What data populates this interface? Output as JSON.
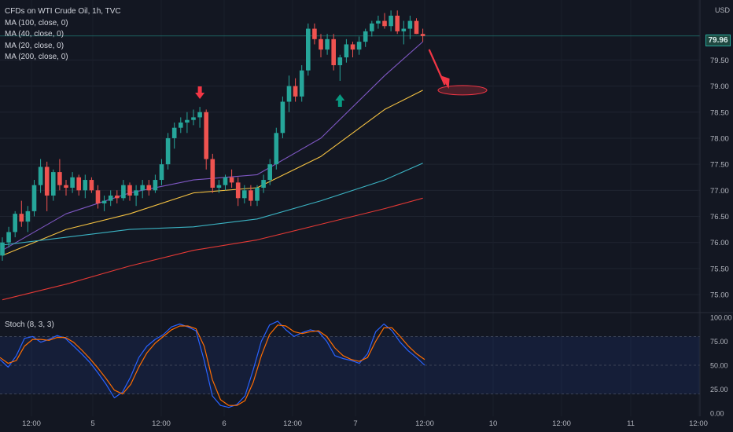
{
  "legend": {
    "title": "CFDs on WTI Crude Oil, 1h, TVC",
    "ma100": "MA (100, close, 0)",
    "ma40": "MA (40, close, 0)",
    "ma20": "MA (20, close, 0)",
    "ma200": "MA (200, close, 0)"
  },
  "currency": "USD",
  "last_price": "79.96",
  "stoch_label": "Stoch (8, 3, 3)",
  "colors": {
    "background": "#131722",
    "up": "#26a69a",
    "down": "#ef5350",
    "ma20": "#7e57c2",
    "ma40": "#f5c242",
    "ma100": "#3bb3c3",
    "ma200": "#e53935",
    "stoch_k": "#2962ff",
    "stoch_d": "#ff6d00",
    "annotation": "#f23645",
    "arrow_up": "#089981"
  },
  "chart_data": [
    {
      "type": "candlestick",
      "title": "CFDs on WTI Crude Oil, 1h, TVC",
      "y_ticks": [
        "79.50",
        "79.00",
        "78.50",
        "78.00",
        "77.50",
        "77.00",
        "76.50",
        "76.00",
        "75.50",
        "75.00"
      ],
      "x_ticks": [
        "12:00",
        "5",
        "12:00",
        "6",
        "12:00",
        "7",
        "12:00",
        "10",
        "12:00",
        "11",
        "12:00"
      ],
      "ylim": [
        74.7,
        80.5
      ],
      "candles": [
        [
          75.75,
          76.1,
          75.65,
          76.0
        ],
        [
          76.0,
          76.3,
          75.9,
          76.2
        ],
        [
          76.2,
          76.6,
          76.1,
          76.55
        ],
        [
          76.55,
          76.8,
          76.3,
          76.4
        ],
        [
          76.4,
          76.7,
          76.2,
          76.6
        ],
        [
          76.6,
          77.2,
          76.5,
          77.1
        ],
        [
          77.1,
          77.6,
          76.95,
          77.45
        ],
        [
          77.45,
          77.55,
          76.6,
          76.9
        ],
        [
          76.9,
          77.4,
          76.8,
          77.35
        ],
        [
          77.35,
          77.6,
          77.0,
          77.1
        ],
        [
          77.1,
          77.2,
          76.9,
          77.05
        ],
        [
          77.05,
          77.35,
          76.95,
          77.25
        ],
        [
          77.25,
          77.3,
          76.9,
          77.0
        ],
        [
          77.0,
          77.3,
          76.85,
          77.2
        ],
        [
          77.2,
          77.25,
          76.95,
          77.0
        ],
        [
          77.0,
          77.1,
          76.65,
          76.75
        ],
        [
          76.75,
          76.9,
          76.6,
          76.8
        ],
        [
          76.8,
          77.0,
          76.7,
          76.9
        ],
        [
          76.9,
          77.0,
          76.75,
          76.85
        ],
        [
          76.85,
          77.2,
          76.8,
          77.1
        ],
        [
          77.1,
          77.15,
          76.8,
          76.9
        ],
        [
          76.9,
          77.1,
          76.7,
          77.0
        ],
        [
          77.0,
          77.2,
          76.85,
          77.1
        ],
        [
          77.1,
          77.2,
          76.9,
          77.0
        ],
        [
          77.0,
          77.3,
          76.95,
          77.2
        ],
        [
          77.2,
          77.6,
          77.1,
          77.5
        ],
        [
          77.5,
          78.1,
          77.4,
          78.0
        ],
        [
          78.0,
          78.3,
          77.8,
          78.2
        ],
        [
          78.2,
          78.4,
          78.1,
          78.3
        ],
        [
          78.3,
          78.5,
          78.1,
          78.35
        ],
        [
          78.35,
          78.55,
          78.25,
          78.4
        ],
        [
          78.4,
          78.6,
          78.2,
          78.5
        ],
        [
          78.5,
          78.55,
          77.4,
          77.6
        ],
        [
          77.6,
          77.7,
          76.95,
          77.05
        ],
        [
          77.05,
          77.2,
          76.95,
          77.1
        ],
        [
          77.1,
          77.3,
          77.0,
          77.25
        ],
        [
          77.25,
          77.4,
          77.05,
          77.15
        ],
        [
          77.15,
          77.25,
          76.7,
          76.85
        ],
        [
          76.85,
          77.1,
          76.75,
          77.0
        ],
        [
          77.0,
          77.1,
          76.7,
          76.8
        ],
        [
          76.8,
          77.1,
          76.7,
          77.05
        ],
        [
          77.05,
          77.3,
          76.95,
          77.2
        ],
        [
          77.2,
          77.6,
          77.1,
          77.5
        ],
        [
          77.5,
          78.2,
          77.4,
          78.1
        ],
        [
          78.1,
          78.8,
          78.0,
          78.7
        ],
        [
          78.7,
          79.2,
          78.5,
          79.0
        ],
        [
          79.0,
          79.15,
          78.7,
          78.8
        ],
        [
          78.8,
          79.4,
          78.7,
          79.3
        ],
        [
          79.3,
          80.2,
          79.2,
          80.1
        ],
        [
          80.1,
          80.2,
          79.8,
          79.9
        ],
        [
          79.9,
          80.0,
          79.55,
          79.7
        ],
        [
          79.7,
          80.0,
          79.6,
          79.9
        ],
        [
          79.9,
          80.0,
          79.3,
          79.4
        ],
        [
          79.4,
          79.6,
          79.1,
          79.55
        ],
        [
          79.55,
          79.9,
          79.45,
          79.8
        ],
        [
          79.8,
          79.85,
          79.55,
          79.7
        ],
        [
          79.7,
          79.95,
          79.6,
          79.85
        ],
        [
          79.85,
          80.1,
          79.75,
          80.05
        ],
        [
          80.05,
          80.25,
          79.95,
          80.2
        ],
        [
          80.2,
          80.35,
          80.1,
          80.25
        ],
        [
          80.25,
          80.4,
          80.1,
          80.15
        ],
        [
          80.15,
          80.45,
          80.05,
          80.35
        ],
        [
          80.35,
          80.45,
          80.0,
          80.05
        ],
        [
          80.05,
          80.25,
          79.8,
          80.1
        ],
        [
          80.1,
          80.35,
          79.9,
          80.25
        ],
        [
          80.25,
          80.3,
          80.0,
          80.0
        ],
        [
          80.0,
          80.1,
          79.85,
          79.96
        ]
      ],
      "moving_averages": [
        {
          "label": "MA (20, close, 0)",
          "points": [
            [
              0,
              75.85
            ],
            [
              10,
              76.55
            ],
            [
              20,
              76.95
            ],
            [
              30,
              77.2
            ],
            [
              40,
              77.3
            ],
            [
              50,
              78.0
            ],
            [
              60,
              79.2
            ],
            [
              66,
              79.85
            ]
          ]
        },
        {
          "label": "MA (40, close, 0)",
          "points": [
            [
              0,
              75.75
            ],
            [
              10,
              76.25
            ],
            [
              20,
              76.55
            ],
            [
              30,
              76.95
            ],
            [
              40,
              77.05
            ],
            [
              50,
              77.65
            ],
            [
              60,
              78.55
            ],
            [
              66,
              78.92
            ]
          ]
        },
        {
          "label": "MA (100, close, 0)",
          "points": [
            [
              0,
              75.95
            ],
            [
              10,
              76.1
            ],
            [
              20,
              76.25
            ],
            [
              30,
              76.3
            ],
            [
              40,
              76.45
            ],
            [
              50,
              76.8
            ],
            [
              60,
              77.2
            ],
            [
              66,
              77.52
            ]
          ]
        },
        {
          "label": "MA (200, close, 0)",
          "points": [
            [
              0,
              74.9
            ],
            [
              10,
              75.2
            ],
            [
              20,
              75.55
            ],
            [
              30,
              75.85
            ],
            [
              40,
              76.05
            ],
            [
              50,
              76.35
            ],
            [
              60,
              76.65
            ],
            [
              66,
              76.85
            ]
          ]
        }
      ],
      "annotations": {
        "down_arrow_at_candle": 31,
        "up_arrow_at_candle": 53,
        "target_price": 78.92
      }
    },
    {
      "type": "line",
      "title": "Stoch (8, 3, 3)",
      "y_ticks": [
        "100.00",
        "75.00",
        "50.00",
        "25.00",
        "0.00"
      ],
      "ylim": [
        0,
        100
      ],
      "band": [
        20,
        80
      ],
      "series": [
        {
          "name": "%K",
          "values": [
            56,
            48,
            60,
            78,
            80,
            74,
            77,
            81,
            78,
            70,
            62,
            53,
            42,
            30,
            16,
            22,
            38,
            58,
            70,
            77,
            82,
            90,
            93,
            90,
            86,
            55,
            18,
            8,
            6,
            9,
            18,
            45,
            75,
            92,
            96,
            87,
            80,
            84,
            87,
            85,
            75,
            60,
            57,
            55,
            52,
            62,
            85,
            93,
            86,
            74,
            65,
            58,
            50
          ]
        },
        {
          "name": "%D",
          "values": [
            58,
            52,
            55,
            70,
            77,
            77,
            76,
            79,
            79,
            74,
            66,
            57,
            47,
            36,
            24,
            20,
            30,
            48,
            63,
            73,
            80,
            87,
            91,
            91,
            88,
            70,
            35,
            14,
            8,
            8,
            13,
            32,
            60,
            82,
            92,
            91,
            85,
            83,
            85,
            86,
            80,
            68,
            60,
            56,
            54,
            58,
            75,
            89,
            89,
            80,
            70,
            62,
            56
          ]
        }
      ]
    }
  ]
}
